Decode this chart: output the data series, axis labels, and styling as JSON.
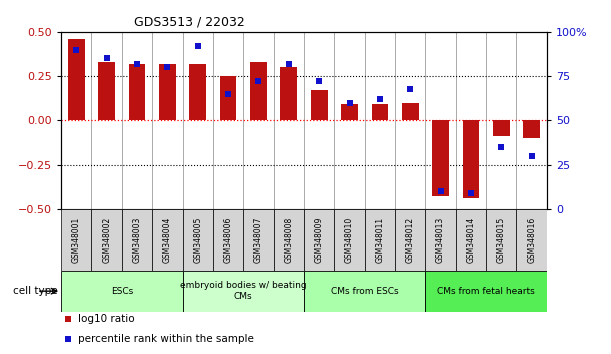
{
  "title": "GDS3513 / 22032",
  "samples": [
    "GSM348001",
    "GSM348002",
    "GSM348003",
    "GSM348004",
    "GSM348005",
    "GSM348006",
    "GSM348007",
    "GSM348008",
    "GSM348009",
    "GSM348010",
    "GSM348011",
    "GSM348012",
    "GSM348013",
    "GSM348014",
    "GSM348015",
    "GSM348016"
  ],
  "log10_ratio": [
    0.46,
    0.33,
    0.32,
    0.32,
    0.32,
    0.25,
    0.33,
    0.3,
    0.17,
    0.09,
    0.09,
    0.1,
    -0.43,
    -0.44,
    -0.09,
    -0.1
  ],
  "percentile_rank": [
    90,
    85,
    82,
    80,
    92,
    65,
    72,
    82,
    72,
    60,
    62,
    68,
    10,
    9,
    35,
    30
  ],
  "bar_color": "#bb1111",
  "square_color": "#1111cc",
  "ylim_left": [
    -0.5,
    0.5
  ],
  "ylim_right": [
    0,
    100
  ],
  "yticks_left": [
    -0.5,
    -0.25,
    0,
    0.25,
    0.5
  ],
  "yticks_right": [
    0,
    25,
    50,
    75,
    100
  ],
  "ytick_labels_right": [
    "0",
    "25",
    "50",
    "75",
    "100%"
  ],
  "cell_groups": [
    {
      "label": "ESCs",
      "start": 0,
      "end": 3,
      "color": "#bbffbb"
    },
    {
      "label": "embryoid bodies w/ beating\nCMs",
      "start": 4,
      "end": 7,
      "color": "#ccffcc"
    },
    {
      "label": "CMs from ESCs",
      "start": 8,
      "end": 11,
      "color": "#aaffaa"
    },
    {
      "label": "CMs from fetal hearts",
      "start": 12,
      "end": 15,
      "color": "#55ee55"
    }
  ],
  "legend_log10_label": "log10 ratio",
  "legend_percentile_label": "percentile rank within the sample",
  "cell_type_label": "cell type",
  "bar_width": 0.55,
  "background_color": "#ffffff",
  "sample_box_color": "#d4d4d4",
  "separator_color": "#888888"
}
